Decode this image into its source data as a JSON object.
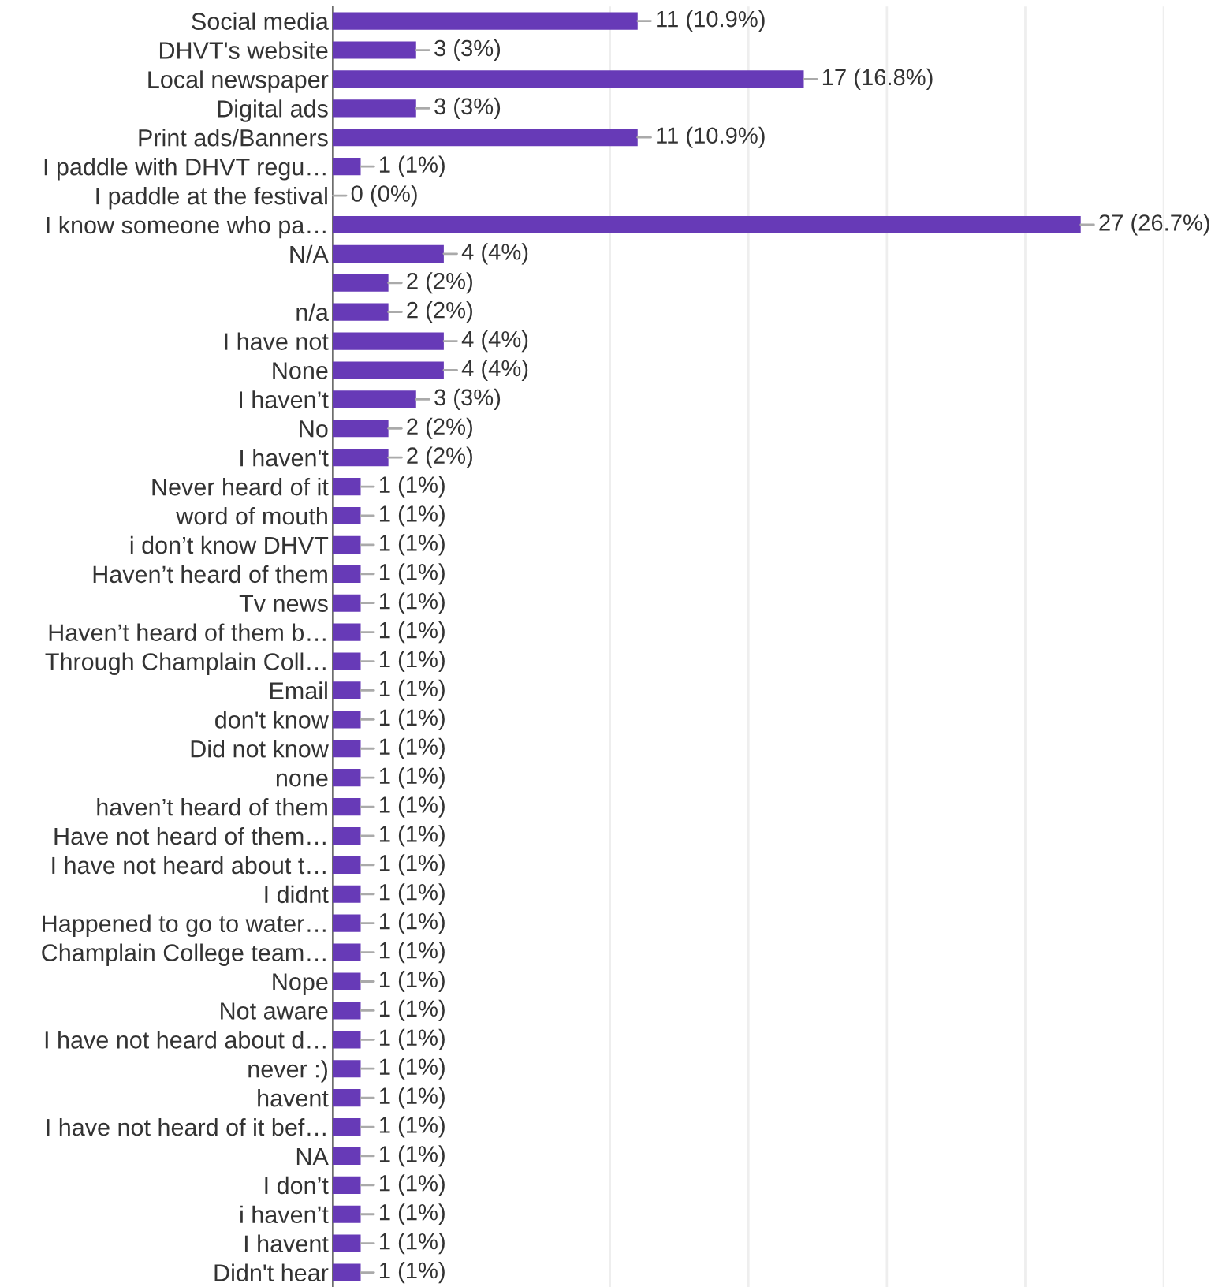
{
  "chart_data": {
    "type": "bar",
    "orientation": "horizontal",
    "categories": [
      "Social media",
      "DHVT's website",
      "Local newspaper",
      "Digital ads",
      "Print ads/Banners",
      "I paddle with DHVT regu…",
      "I paddle at the festival",
      "I know someone who pa…",
      "N/A",
      null,
      "n/a",
      "I have not",
      "None",
      "I haven’t",
      "No",
      "I haven't",
      "Never heard of it",
      "word of mouth",
      "i don’t know DHVT",
      "Haven’t heard of them",
      "Tv news",
      "Haven’t heard of them b…",
      "Through Champlain Coll…",
      "Email",
      "don't know",
      "Did not know",
      "none",
      "haven’t heard of them",
      "Have not heard of them…",
      "I have not heard about t…",
      "I didnt",
      "Happened to go to water…",
      "Champlain College team…",
      "Nope",
      "Not aware",
      "I have not heard about d…",
      "never :)",
      "havent",
      "I have not heard of it bef…",
      "NA",
      "I don’t",
      "i haven’t",
      "I havent",
      "Didn't hear"
    ],
    "values": [
      11,
      3,
      17,
      3,
      11,
      1,
      0,
      27,
      4,
      2,
      2,
      4,
      4,
      3,
      2,
      2,
      1,
      1,
      1,
      1,
      1,
      1,
      1,
      1,
      1,
      1,
      1,
      1,
      1,
      1,
      1,
      1,
      1,
      1,
      1,
      1,
      1,
      1,
      1,
      1,
      1,
      1,
      1,
      1
    ],
    "value_labels": [
      "11 (10.9%)",
      "3 (3%)",
      "17 (16.8%)",
      "3 (3%)",
      "11 (10.9%)",
      "1 (1%)",
      "0 (0%)",
      "27 (26.7%)",
      "4 (4%)",
      "2 (2%)",
      "2 (2%)",
      "4 (4%)",
      "4 (4%)",
      "3 (3%)",
      "2 (2%)",
      "2 (2%)",
      "1 (1%)",
      "1 (1%)",
      "1 (1%)",
      "1 (1%)",
      "1 (1%)",
      "1 (1%)",
      "1 (1%)",
      "1 (1%)",
      "1 (1%)",
      "1 (1%)",
      "1 (1%)",
      "1 (1%)",
      "1 (1%)",
      "1 (1%)",
      "1 (1%)",
      "1 (1%)",
      "1 (1%)",
      "1 (1%)",
      "1 (1%)",
      "1 (1%)",
      "1 (1%)",
      "1 (1%)",
      "1 (1%)",
      "1 (1%)",
      "1 (1%)",
      "1 (1%)",
      "1 (1%)",
      "1 (1%)"
    ],
    "color": "#673ab7",
    "xlim": [
      0,
      30
    ],
    "xticks": [
      {
        "value": 10,
        "label": null
      },
      {
        "value": 15,
        "label": null
      },
      {
        "value": 20,
        "label": null
      },
      {
        "value": 25,
        "label": null
      },
      {
        "value": 30,
        "label": null
      }
    ],
    "grid": "x"
  }
}
